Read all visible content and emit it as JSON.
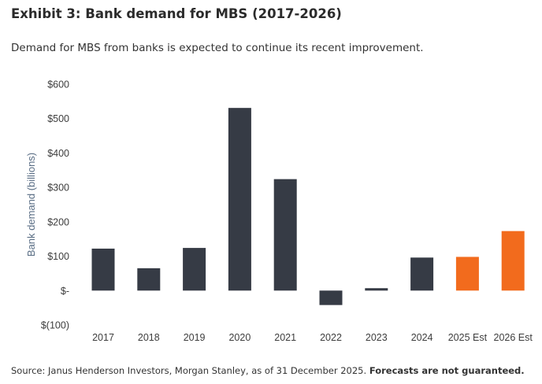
{
  "title": "Exhibit 3: Bank demand for MBS (2017-2026)",
  "subtitle": "Demand for MBS from banks is expected to continue its recent improvement.",
  "source": {
    "text": "Source: Janus Henderson Investors, Morgan Stanley, as of 31 December 2025.",
    "emphasis": "Forecasts are not guaranteed."
  },
  "colors": {
    "actual": "#363b45",
    "forecast": "#f26b1d",
    "axis_text": "#3d3d3d",
    "ylabel_text": "#5a6e85"
  },
  "chart_data": {
    "type": "bar",
    "title": "Exhibit 3: Bank demand for MBS (2017-2026)",
    "xlabel": "",
    "ylabel": "Bank demand (billions)",
    "ylim": [
      -100,
      600
    ],
    "yticks": [
      {
        "value": 600,
        "label": "$600"
      },
      {
        "value": 500,
        "label": "$500"
      },
      {
        "value": 400,
        "label": "$400"
      },
      {
        "value": 300,
        "label": "$300"
      },
      {
        "value": 200,
        "label": "$200"
      },
      {
        "value": 100,
        "label": "$100"
      },
      {
        "value": 0,
        "label": "$-"
      },
      {
        "value": -100,
        "label": "$(100)"
      }
    ],
    "grid": false,
    "categories": [
      "2017",
      "2018",
      "2019",
      "2020",
      "2021",
      "2022",
      "2023",
      "2024",
      "2025 Est",
      "2026 Est"
    ],
    "values": [
      122,
      65,
      124,
      531,
      324,
      -42,
      7,
      96,
      98,
      173
    ],
    "forecast": [
      false,
      false,
      false,
      false,
      false,
      false,
      false,
      false,
      true,
      true
    ]
  }
}
